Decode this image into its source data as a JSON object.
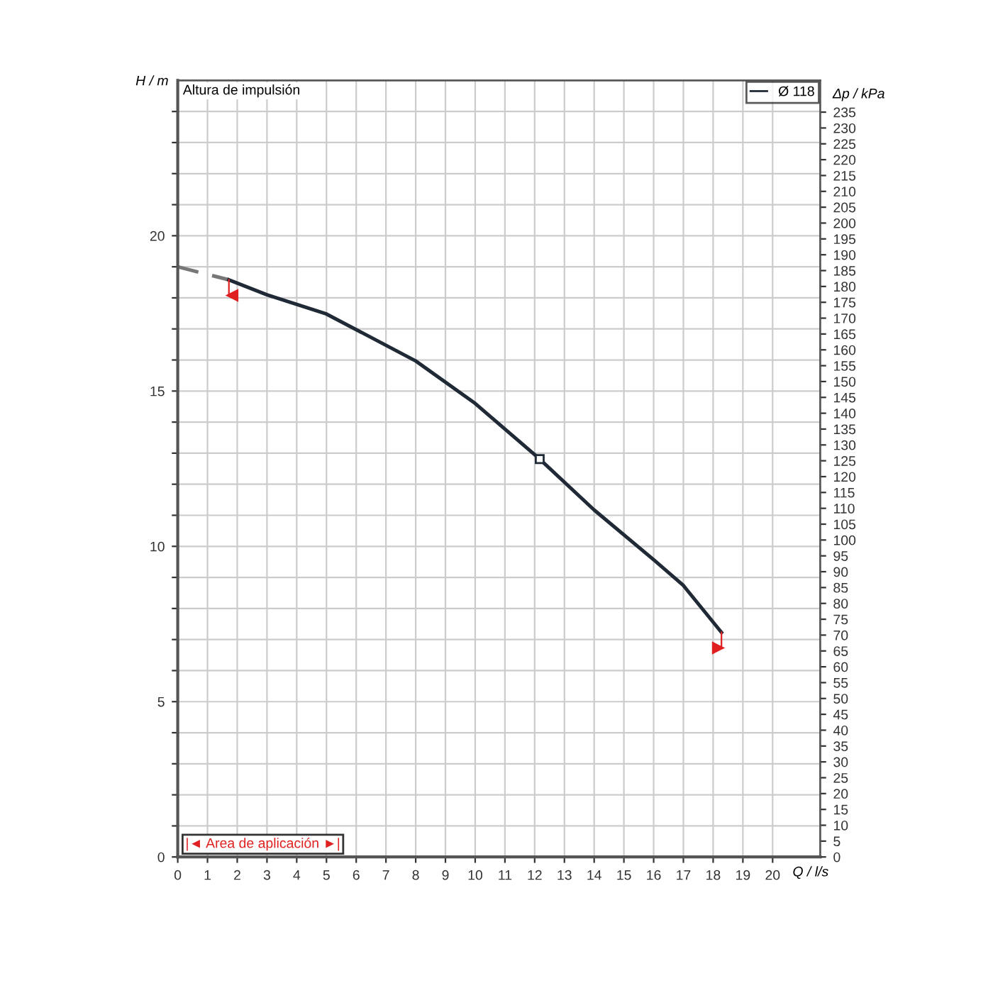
{
  "chart_data": {
    "type": "line",
    "xlabel": "Q / l/s",
    "ylabel": "H / m",
    "y2label": "Δp / kPa",
    "annotations": [
      "Altura de impulsión",
      "|◄ Area de aplicación ►|"
    ],
    "series": [
      {
        "color": "#777777",
        "line_style": "dashed",
        "x": [
          0,
          1.72
        ],
        "values": [
          19.0,
          18.58
        ]
      },
      {
        "name": "Ø 118",
        "color": "#1f2a36",
        "line_style": "solid",
        "x": [
          1.72,
          3,
          5,
          8,
          10,
          12.17,
          14,
          16,
          17,
          18.28
        ],
        "values": [
          18.58,
          18.1,
          17.48,
          15.97,
          14.6,
          12.81,
          11.17,
          9.57,
          8.74,
          7.23
        ]
      },
      {
        "type": "scatter",
        "color": "#1f2a36",
        "marker": "square",
        "x": [
          12.17
        ],
        "values": [
          12.81
        ]
      }
    ],
    "xlim": [
      0,
      21.6
    ],
    "ylim": [
      0,
      25
    ],
    "y2lim": [
      0,
      245
    ],
    "xticks": [
      0,
      1,
      2,
      3,
      4,
      5,
      6,
      7,
      8,
      9,
      10,
      11,
      12,
      13,
      14,
      15,
      16,
      17,
      18,
      19,
      20
    ],
    "yticks": [
      0,
      {
        "value": 1,
        "label": null
      },
      {
        "value": 2,
        "label": null
      },
      {
        "value": 3,
        "label": null
      },
      {
        "value": 4,
        "label": null
      },
      5,
      {
        "value": 6,
        "label": null
      },
      {
        "value": 7,
        "label": null
      },
      {
        "value": 8,
        "label": null
      },
      {
        "value": 9,
        "label": null
      },
      10,
      {
        "value": 11,
        "label": null
      },
      {
        "value": 12,
        "label": null
      },
      {
        "value": 13,
        "label": null
      },
      {
        "value": 14,
        "label": null
      },
      15,
      {
        "value": 16,
        "label": null
      },
      {
        "value": 17,
        "label": null
      },
      {
        "value": 18,
        "label": null
      },
      {
        "value": 19,
        "label": null
      },
      20,
      {
        "value": 21,
        "label": null
      },
      {
        "value": 22,
        "label": null
      },
      {
        "value": 23,
        "label": null
      },
      {
        "value": 24,
        "label": null
      }
    ],
    "y2ticks": [
      0,
      5,
      10,
      15,
      20,
      25,
      30,
      35,
      40,
      45,
      50,
      55,
      60,
      65,
      70,
      75,
      80,
      85,
      90,
      95,
      100,
      105,
      110,
      115,
      120,
      125,
      130,
      135,
      140,
      145,
      150,
      155,
      160,
      165,
      170,
      175,
      180,
      185,
      190,
      195,
      200,
      205,
      210,
      215,
      220,
      225,
      230,
      235
    ],
    "grid": true,
    "legend": "top right"
  }
}
